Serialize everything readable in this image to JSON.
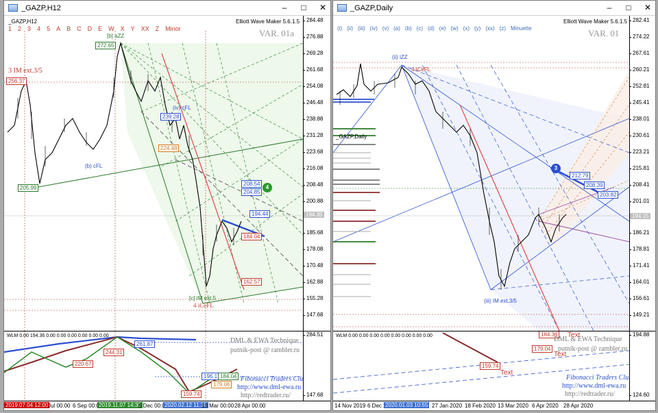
{
  "left": {
    "title": "_GAZP,H12",
    "symbol_label": "_GAZP,H12",
    "indicator_name": "Elliott Wave Maker 5.6.1.5",
    "variant": "VAR. 01a",
    "wave_labels": [
      "1",
      "2",
      "3",
      "4",
      "5",
      "A",
      "B",
      "C",
      "D",
      "E",
      "W",
      "X",
      "Y",
      "XX",
      "Z",
      "Minor"
    ],
    "price_ticks": [
      "284.48",
      "276.88",
      "269.28",
      "261.68",
      "254.08",
      "246.48",
      "238.88",
      "231.28",
      "223.68",
      "216.08",
      "208.48",
      "200.88",
      "193.28",
      "185.68",
      "178.08",
      "170.48",
      "162.88",
      "155.28",
      "147.68"
    ],
    "current_price": "194.35",
    "annotations": {
      "im_ext": "3 IM ext.3/5",
      "peak": "272.65",
      "left_top": "256.37",
      "low_a": "205.99",
      "b_cfl": "(b) cFL",
      "bazz": "[b] aZZ",
      "b_cfl2": "(b) cFL",
      "iv_cfl": "(iv) cFL",
      "v1": "239.28",
      "v2": "224.48",
      "r1": "208.54",
      "r2": "204.85",
      "r3": "194.44",
      "r4": "184.04",
      "r5": "162.57",
      "c_im": "[c] IM ext.5",
      "icefl": "4 iCeFL",
      "circle4": "4"
    },
    "sub_label": "WLM 0.00 194.36 0.00 0.00 0.00 0.00 0.00 0.00",
    "sub_ticks": [
      "284.51",
      "147.68"
    ],
    "sub_boxes": [
      "220.67",
      "244.31",
      "261.87",
      "196.17",
      "184.04",
      "179.06",
      "159.74"
    ],
    "brand": {
      "line1": "DML & EWA Technique",
      "line2": "putnik-post @ rambler.ru",
      "line3": "Fibonacci Traders Club",
      "line4": "http://www.dml-ewa.ru",
      "line5": "http://redtrader.ru/"
    },
    "dates": [
      "2019.07.04 12:00",
      "Jul 00:00",
      "6 Sep 00:00",
      "2019.11.07 14:30",
      "6 Dec 00:00",
      "2020.02.12 11:30",
      "13 Mar 00:00",
      "28 Apr 00:00"
    ]
  },
  "right": {
    "title": "_GAZP,Daily",
    "symbol_label": "_GAZP,Daily",
    "indicator_name": "Elliott Wave Maker 5.6.1.5",
    "variant": "VAR. 01",
    "wave_labels": [
      "(i)",
      "(ii)",
      "(iii)",
      "(iv)",
      "(v)",
      "(a)",
      "(b)",
      "(c)",
      "(d)",
      "(e)",
      "(w)",
      "(x)",
      "(y)",
      "(xx)",
      "(z)",
      "Minuette"
    ],
    "price_ticks": [
      "282.41",
      "274.22",
      "267.61",
      "260.21",
      "252.81",
      "245.41",
      "238.01",
      "230.61",
      "223.21",
      "215.81",
      "208.41",
      "201.01",
      "193.61",
      "186.21",
      "178.81",
      "171.41",
      "164.01",
      "156.61",
      "149.21"
    ],
    "current_price": "194.15",
    "annotations": {
      "ii_izz": "(ii) iZZ",
      "i_icefl": "ii iCeFL",
      "iii_im": "(iii) IM ext.3/5",
      "circle3": "3",
      "r1": "212.79",
      "r2": "208.39",
      "r3": "203.82"
    },
    "sub_label": "WLM 0.00 0.00 0.00 0.00 0.00 0.00 0.00 0.00",
    "sub_ticks": [
      "194.88",
      "124.60"
    ],
    "sub_boxes": [
      "184.36",
      "179.04",
      "159.74"
    ],
    "text_marks": [
      "Text",
      "Text",
      "Text"
    ],
    "brand": {
      "line1": "DML & EWA Technique",
      "line2": "putnik-post @ rambler.ru",
      "line3": "Fibonacci Traders Club",
      "line4": "http://www.dml-ewa.ru",
      "line5": "http://redtrader.ru/"
    },
    "dates": [
      "14 Nov 2019",
      "6 Dec 2019",
      "2020.01.03 10:55",
      "27 Jan 2020",
      "18 Feb 2020",
      "13 Mar 2020",
      "6 Apr 2020",
      "28 Apr 2020"
    ]
  },
  "colors": {
    "up": "#000000",
    "red": "#c0392b",
    "green": "#2a7a2a",
    "blue": "#2a4fd0"
  }
}
